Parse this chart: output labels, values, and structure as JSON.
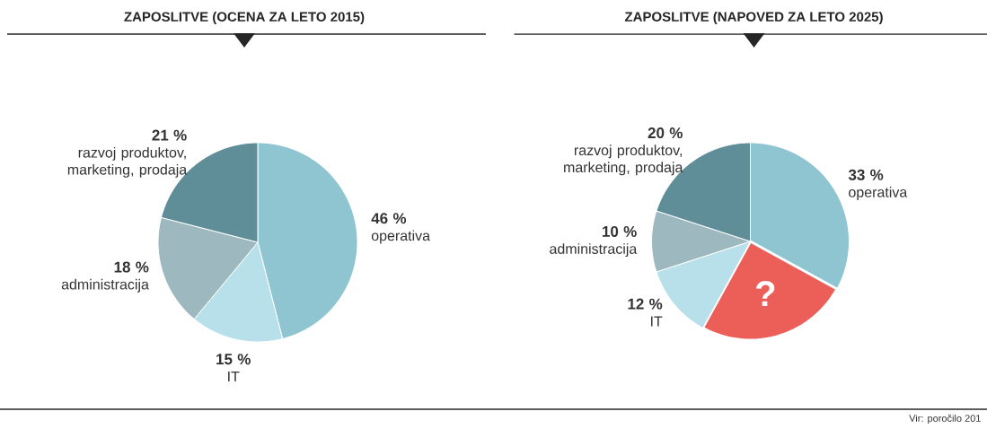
{
  "chart_data": [
    {
      "type": "pie",
      "title": "ZAPOSLITVE (OCENA ZA LETO 2015)",
      "categories": [
        "operativa",
        "IT",
        "administracija",
        "razvoj produktov, marketing, prodaja"
      ],
      "values": [
        46,
        15,
        18,
        21
      ],
      "value_labels": [
        "46 %",
        "15 %",
        "18 %",
        "21 %"
      ],
      "colors": [
        "#8fc5d1",
        "#b8e0ea",
        "#9db8bf",
        "#5f8e99"
      ]
    },
    {
      "type": "pie",
      "title": "ZAPOSLITVE (NAPOVED ZA LETO 2025)",
      "categories": [
        "operativa",
        "?",
        "IT",
        "administracija",
        "razvoj produktov, marketing, prodaja"
      ],
      "values": [
        33,
        25,
        12,
        10,
        20
      ],
      "value_labels": [
        "33 %",
        null,
        "12 %",
        "10 %",
        "20 %"
      ],
      "colors": [
        "#8fc5d1",
        "#ec5f58",
        "#b8e0ea",
        "#9db8bf",
        "#5f8e99"
      ],
      "annotations": [
        "Vir: poročilo 201"
      ]
    }
  ]
}
